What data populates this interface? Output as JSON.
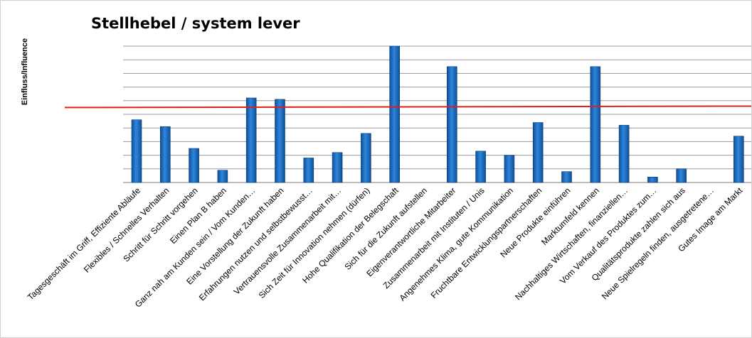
{
  "chart_data": {
    "type": "bar",
    "title": "Stellhebel / system lever",
    "xlabel": "",
    "ylabel": "Einfluss/Influence",
    "ylim": [
      0,
      10
    ],
    "grid": true,
    "legend": "none",
    "bar_color": "#1f6fc5",
    "reference_line": {
      "y0": 5.5,
      "y1": 5.6,
      "color": "#e01e1e"
    },
    "categories": [
      "Tagesgeschäft im Griff, Effiziente Abläufe",
      "Flexibles / Schnelles Verhalten",
      "Schritt für Schritt vorgehen",
      "Einen Plan B haben",
      "Ganz nah am Kunden sein / Vom Kunden…",
      "Eine Vorstellung der Zukunft haben",
      "Erfahrungen nutzen und selbstbewusst…",
      "Vertrauensvolle Zusammenarbeit mit…",
      "Sich Zeit für Innovation nehmen (dürfen)",
      "Hohe Qualifikation der Belegschaft",
      "Sich für die Zukunft aufstellen",
      "Eigenverantwortliche Mitarbeiter",
      "Zusammenarbeit mit Instituten / Unis",
      "Angenehmes Klima, gute Kommunikation",
      "Fruchtbare Entwicklungspartnerschaften",
      "Neue Produkte einführen",
      "Marktumfeld kennen",
      "Nachhaltiges Wirtschaften, finanziellen…",
      "Vom Verkauf des Produktes zum…",
      "Qualitätsprodukte zahlen sich aus",
      "Neue Spielregeln finden, ausgetretene…",
      "Gutes Image am Markt"
    ],
    "values": [
      4.6,
      4.1,
      2.5,
      0.9,
      6.2,
      6.1,
      1.8,
      2.2,
      3.6,
      10.0,
      0,
      8.5,
      2.3,
      2.0,
      4.4,
      0.8,
      8.5,
      4.2,
      0.4,
      1.0,
      0,
      3.4
    ]
  }
}
